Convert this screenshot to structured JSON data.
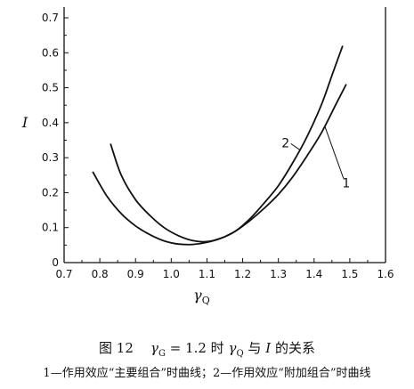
{
  "chart_data": {
    "type": "line",
    "xlabel": "γ",
    "xlabel_sub": "Q",
    "ylabel": "I",
    "xlim": [
      0.7,
      1.6
    ],
    "ylim": [
      0,
      0.7
    ],
    "x_ticks": [
      "0.7",
      "0.8",
      "0.9",
      "1.0",
      "1.1",
      "1.2",
      "1.3",
      "1.4",
      "1.5",
      "1.6"
    ],
    "y_ticks": [
      "0",
      "0.1",
      "0.2",
      "0.3",
      "0.4",
      "0.5",
      "0.6",
      "0.7"
    ],
    "grid": false,
    "series": [
      {
        "name": "1",
        "x": [
          0.78,
          0.82,
          0.86,
          0.9,
          0.94,
          0.98,
          1.02,
          1.06,
          1.1,
          1.14,
          1.18,
          1.22,
          1.26,
          1.3,
          1.34,
          1.38,
          1.42,
          1.46,
          1.49
        ],
        "values": [
          0.26,
          0.19,
          0.14,
          0.105,
          0.08,
          0.062,
          0.053,
          0.052,
          0.058,
          0.07,
          0.09,
          0.12,
          0.155,
          0.195,
          0.245,
          0.305,
          0.37,
          0.45,
          0.51
        ]
      },
      {
        "name": "2",
        "x": [
          0.83,
          0.86,
          0.9,
          0.94,
          0.98,
          1.02,
          1.06,
          1.1,
          1.14,
          1.18,
          1.22,
          1.26,
          1.3,
          1.34,
          1.38,
          1.42,
          1.45,
          1.48
        ],
        "values": [
          0.34,
          0.25,
          0.18,
          0.135,
          0.1,
          0.077,
          0.063,
          0.06,
          0.07,
          0.09,
          0.125,
          0.17,
          0.22,
          0.285,
          0.36,
          0.45,
          0.535,
          0.62
        ]
      }
    ],
    "curve_labels": [
      {
        "text": "1",
        "x": 1.49,
        "y": 0.215
      },
      {
        "text": "2",
        "x": 1.32,
        "y": 0.33
      }
    ]
  },
  "caption": {
    "figure_no": "图 12",
    "gamma_g": "γ",
    "gamma_g_sub": "G",
    "eq_value": "= 1.2 时",
    "gamma_q": "γ",
    "gamma_q_sub": "Q",
    "yu": "与",
    "i_symbol": "I",
    "relation": "的关系",
    "note": "1—作用效应“主要组合”时曲线；2—作用效应“附加组合”时曲线"
  }
}
